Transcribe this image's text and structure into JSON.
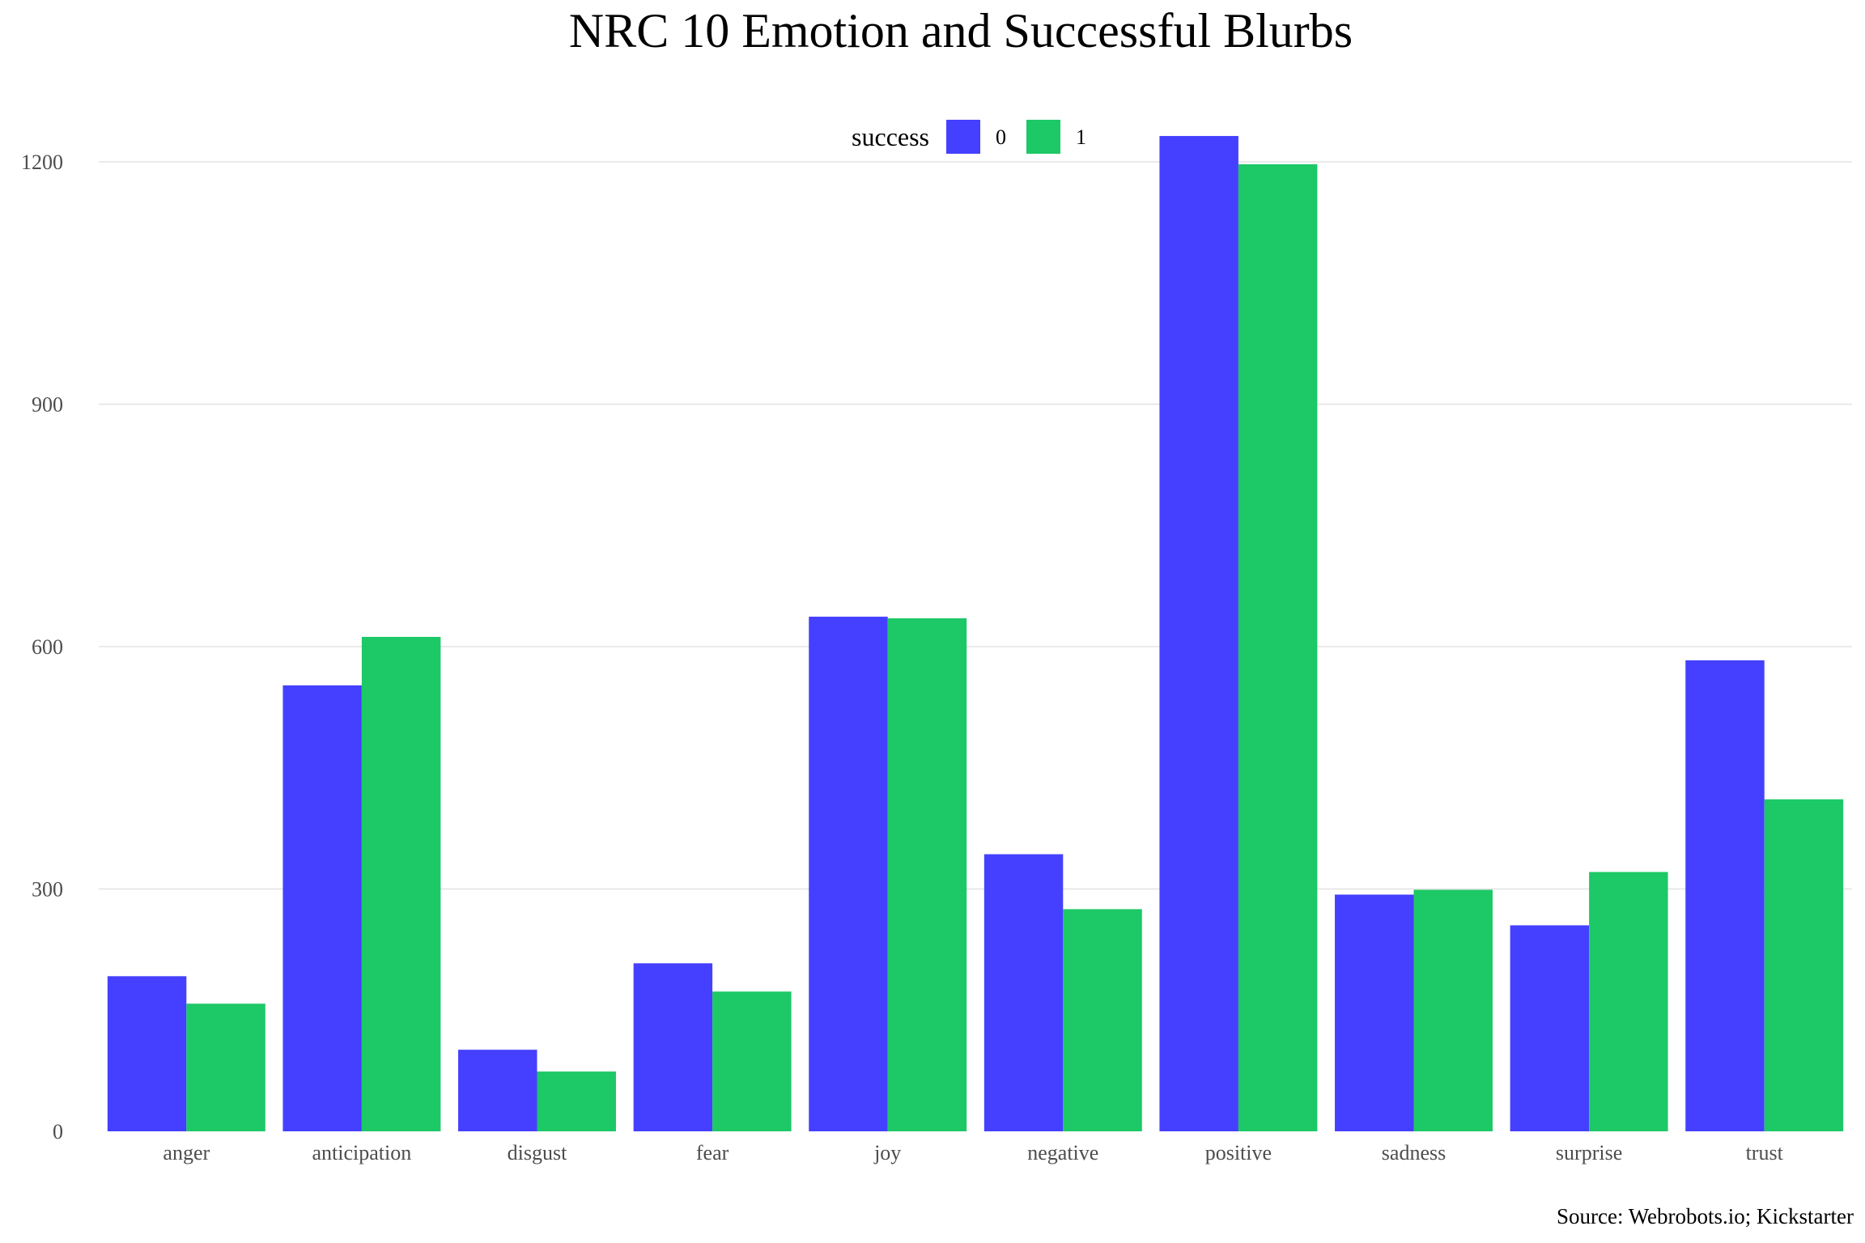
{
  "chart_data": {
    "type": "bar",
    "title": "NRC 10 Emotion and Successful Blurbs",
    "caption": "Source: Webrobots.io; Kickstarter",
    "xlabel": "",
    "ylabel": "",
    "ylim": [
      0,
      1250
    ],
    "yticks": [
      "0",
      "300",
      "600",
      "900",
      "1200"
    ],
    "ytick_values": [
      0,
      300,
      600,
      900,
      1200
    ],
    "grid": "horizontal",
    "legend": {
      "title": "success",
      "position": "top",
      "labels": [
        "0",
        "1"
      ]
    },
    "categories": [
      "anger",
      "anticipation",
      "disgust",
      "fear",
      "joy",
      "negative",
      "positive",
      "sadness",
      "surprise",
      "trust"
    ],
    "series": [
      {
        "name": "0",
        "color": "#4540ff",
        "values": [
          192,
          552,
          101,
          208,
          637,
          343,
          1232,
          293,
          255,
          583
        ]
      },
      {
        "name": "1",
        "color": "#1dc866",
        "values": [
          158,
          612,
          74,
          173,
          635,
          275,
          1197,
          299,
          321,
          411
        ]
      }
    ]
  }
}
